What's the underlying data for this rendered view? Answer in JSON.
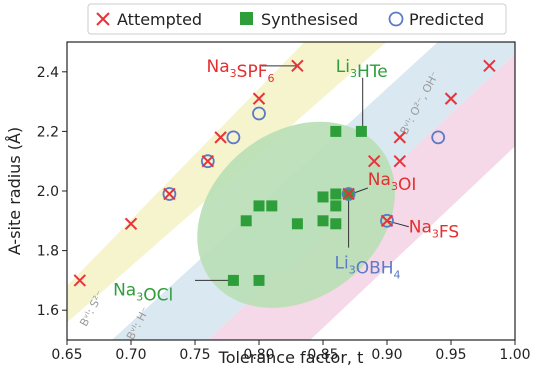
{
  "chart_data": {
    "type": "scatter",
    "xlabel": "Tolerance factor, t",
    "ylabel": "A-site radius (Å)",
    "xlim": [
      0.65,
      1.0
    ],
    "ylim": [
      1.5,
      2.5
    ],
    "xticks": [
      0.65,
      0.7,
      0.75,
      0.8,
      0.85,
      0.9,
      0.95,
      1.0
    ],
    "xtick_labels": [
      "0.65",
      "0.70",
      "0.75",
      "0.80",
      "0.85",
      "0.90",
      "0.95",
      "1.00"
    ],
    "yticks": [
      1.6,
      1.8,
      2.0,
      2.2,
      2.4
    ],
    "ytick_labels": [
      "1.6",
      "1.8",
      "2.0",
      "2.2",
      "2.4"
    ],
    "grid": false,
    "legend_position": "top",
    "colors": {
      "attempted": "#e8333b",
      "synthesised": "#2e9e3a",
      "predicted": "#5a7bc6",
      "band_s": "#f4f2c4",
      "band_h": "#d4e4f0",
      "band_o": "#f5d2e4",
      "ellipse": "#b8dfb5",
      "label_red": "#e23030",
      "label_green": "#2e9e3a",
      "label_blue": "#5a7bc6"
    },
    "series": [
      {
        "name": "Attempted",
        "marker": "x",
        "points": [
          [
            0.66,
            1.7
          ],
          [
            0.7,
            1.89
          ],
          [
            0.73,
            1.99
          ],
          [
            0.76,
            2.1
          ],
          [
            0.77,
            2.18
          ],
          [
            0.8,
            2.31
          ],
          [
            0.83,
            2.42
          ],
          [
            0.87,
            1.99
          ],
          [
            0.89,
            2.1
          ],
          [
            0.9,
            1.9
          ],
          [
            0.91,
            2.1
          ],
          [
            0.91,
            2.18
          ],
          [
            0.95,
            2.31
          ],
          [
            0.98,
            2.42
          ]
        ]
      },
      {
        "name": "Synthesised",
        "marker": "square",
        "points": [
          [
            0.78,
            1.7
          ],
          [
            0.8,
            1.7
          ],
          [
            0.79,
            1.9
          ],
          [
            0.8,
            1.95
          ],
          [
            0.81,
            1.95
          ],
          [
            0.83,
            1.89
          ],
          [
            0.85,
            1.9
          ],
          [
            0.85,
            1.98
          ],
          [
            0.86,
            1.89
          ],
          [
            0.86,
            1.95
          ],
          [
            0.86,
            1.99
          ],
          [
            0.87,
            1.99
          ],
          [
            0.86,
            2.2
          ],
          [
            0.88,
            2.2
          ]
        ]
      },
      {
        "name": "Predicted",
        "marker": "circle",
        "points": [
          [
            0.73,
            1.99
          ],
          [
            0.76,
            2.1
          ],
          [
            0.78,
            2.18
          ],
          [
            0.8,
            2.26
          ],
          [
            0.87,
            1.99
          ],
          [
            0.9,
            1.9
          ],
          [
            0.94,
            2.18
          ]
        ]
      }
    ],
    "bands": [
      {
        "name": "band-s",
        "label": "Bᵛᴵ: S²⁻",
        "points": [
          [
            0.645,
            1.54
          ],
          [
            0.645,
            1.66
          ],
          [
            0.84,
            2.52
          ],
          [
            0.905,
            2.52
          ]
        ]
      },
      {
        "name": "band-h",
        "label": "Bᵛᴵ: H⁻",
        "points": [
          [
            0.685,
            1.5
          ],
          [
            0.76,
            1.5
          ],
          [
            1.0,
            2.46
          ],
          [
            1.0,
            2.56
          ],
          [
            0.955,
            2.56
          ]
        ]
      },
      {
        "name": "band-o",
        "label": "Bᵛᴵ: O²⁻, OH⁻",
        "points": [
          [
            0.76,
            1.5
          ],
          [
            0.84,
            1.5
          ],
          [
            1.0,
            2.15
          ],
          [
            1.0,
            2.46
          ]
        ]
      }
    ],
    "annotations": [
      {
        "name": "label-na3spf6",
        "text": "Na3SPF6",
        "color": "#e23030",
        "at": [
          0.759,
          2.4
        ],
        "line": [
          [
            0.802,
            2.42
          ],
          [
            0.83,
            2.42
          ]
        ]
      },
      {
        "name": "label-li3hte",
        "text": "Li3HTe",
        "color": "#2e9e3a",
        "at": [
          0.86,
          2.4
        ],
        "line": [
          [
            0.881,
            2.38
          ],
          [
            0.881,
            2.2
          ]
        ]
      },
      {
        "name": "label-na3oi",
        "text": "Na3OI",
        "color": "#e23030",
        "at": [
          0.885,
          2.02
        ],
        "line": [
          [
            0.872,
            1.99
          ],
          [
            0.885,
            2.01
          ]
        ]
      },
      {
        "name": "label-na3fs",
        "text": "Na3FS",
        "color": "#e23030",
        "at": [
          0.917,
          1.86
        ],
        "line": [
          [
            0.9,
            1.9
          ],
          [
            0.917,
            1.88
          ]
        ]
      },
      {
        "name": "label-li3obh4",
        "text": "Li3OBH4",
        "color": "#5a7bc6",
        "at": [
          0.859,
          1.74
        ],
        "line": [
          [
            0.87,
            1.99
          ],
          [
            0.87,
            1.81
          ]
        ]
      },
      {
        "name": "label-na3ocl",
        "text": "Na3OCl",
        "color": "#2e9e3a",
        "at": [
          0.686,
          1.65
        ],
        "line": [
          [
            0.75,
            1.7
          ],
          [
            0.776,
            1.7
          ]
        ]
      }
    ],
    "band_labels": [
      {
        "name": "band-label-s",
        "text": "Bᵛᴵ: S²⁻",
        "at": [
          0.672,
          1.6
        ]
      },
      {
        "name": "band-label-h",
        "text": "Bᵛᴵ: H⁻",
        "at": [
          0.708,
          1.55
        ]
      },
      {
        "name": "band-label-o",
        "text": "Bᵛᴵ: O²⁻, OH⁻",
        "at": [
          0.928,
          2.29
        ]
      }
    ],
    "ellipse": {
      "center": [
        0.829,
        1.92
      ],
      "half_width_x": 0.065,
      "half_height_y": 0.36,
      "angle_deg": 52
    }
  }
}
